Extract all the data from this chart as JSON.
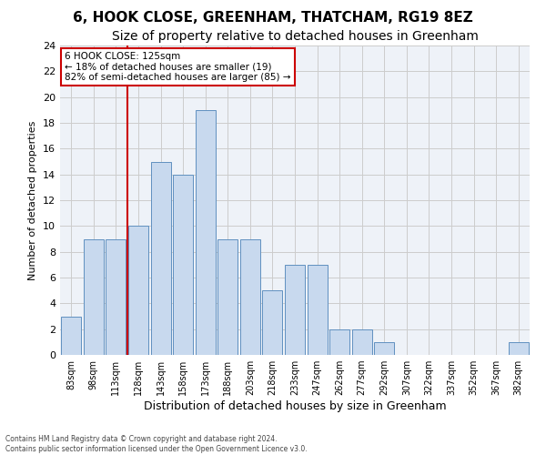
{
  "title": "6, HOOK CLOSE, GREENHAM, THATCHAM, RG19 8EZ",
  "subtitle": "Size of property relative to detached houses in Greenham",
  "xlabel": "Distribution of detached houses by size in Greenham",
  "ylabel": "Number of detached properties",
  "categories": [
    "83sqm",
    "98sqm",
    "113sqm",
    "128sqm",
    "143sqm",
    "158sqm",
    "173sqm",
    "188sqm",
    "203sqm",
    "218sqm",
    "233sqm",
    "247sqm",
    "262sqm",
    "277sqm",
    "292sqm",
    "307sqm",
    "322sqm",
    "337sqm",
    "352sqm",
    "367sqm",
    "382sqm"
  ],
  "values": [
    3,
    9,
    9,
    10,
    15,
    14,
    19,
    9,
    9,
    5,
    7,
    7,
    2,
    2,
    1,
    0,
    0,
    0,
    0,
    0,
    1
  ],
  "bar_color": "#c8d9ee",
  "bar_edge_color": "#6090c0",
  "grid_color": "#cccccc",
  "background_color": "#eef2f8",
  "ylim": [
    0,
    24
  ],
  "yticks": [
    0,
    2,
    4,
    6,
    8,
    10,
    12,
    14,
    16,
    18,
    20,
    22,
    24
  ],
  "vline_color": "#cc0000",
  "annotation_text": "6 HOOK CLOSE: 125sqm\n← 18% of detached houses are smaller (19)\n82% of semi-detached houses are larger (85) →",
  "annotation_box_color": "#cc0000",
  "footer_line1": "Contains HM Land Registry data © Crown copyright and database right 2024.",
  "footer_line2": "Contains public sector information licensed under the Open Government Licence v3.0.",
  "title_fontsize": 11,
  "subtitle_fontsize": 10,
  "xlabel_fontsize": 9,
  "ylabel_fontsize": 8
}
